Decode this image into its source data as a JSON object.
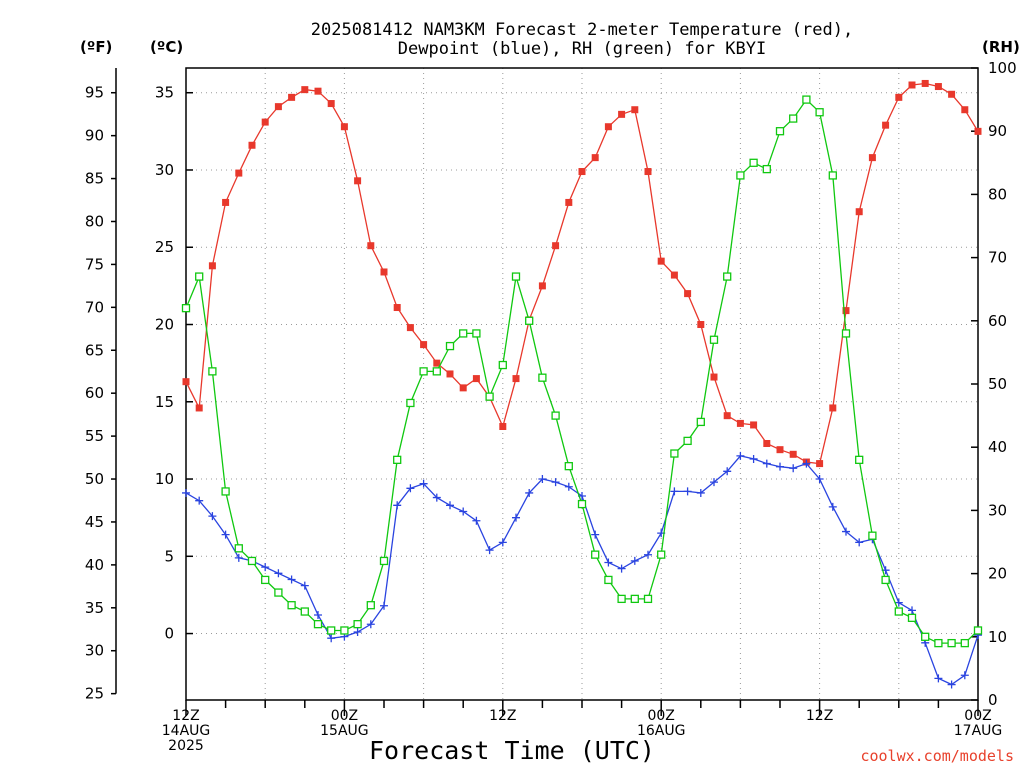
{
  "chart_data": {
    "type": "line",
    "title": [
      "2025081412 NAM3KM Forecast 2-meter Temperature (red),",
      "Dewpoint (blue), RH (green) for KBYI"
    ],
    "xlabel": "Forecast Time (UTC)",
    "axis_units": {
      "fahrenheit": "(ºF)",
      "celsius": "(ºC)",
      "rh": "(RH)"
    },
    "x_hours": [
      0,
      1,
      2,
      3,
      4,
      5,
      6,
      7,
      8,
      9,
      10,
      11,
      12,
      13,
      14,
      15,
      16,
      17,
      18,
      19,
      20,
      21,
      22,
      23,
      24,
      25,
      26,
      27,
      28,
      29,
      30,
      31,
      32,
      33,
      34,
      35,
      36,
      37,
      38,
      39,
      40,
      41,
      42,
      43,
      44,
      45,
      46,
      47,
      48,
      49,
      50,
      51,
      52,
      53,
      54,
      55,
      56,
      57,
      58,
      59,
      60
    ],
    "xlim": [
      0,
      60
    ],
    "x_ticks": [
      {
        "hour": 0,
        "lines": [
          "12Z",
          "14AUG",
          "2025"
        ]
      },
      {
        "hour": 12,
        "lines": [
          "00Z",
          "15AUG"
        ]
      },
      {
        "hour": 24,
        "lines": [
          "12Z"
        ]
      },
      {
        "hour": 36,
        "lines": [
          "00Z",
          "16AUG"
        ]
      },
      {
        "hour": 48,
        "lines": [
          "12Z"
        ]
      },
      {
        "hour": 60,
        "lines": [
          "00Z",
          "17AUG"
        ]
      }
    ],
    "celsius_axis": {
      "ylim": [
        -4.3,
        36.6
      ],
      "ticks": [
        0,
        5,
        10,
        15,
        20,
        25,
        30,
        35
      ]
    },
    "fahrenheit_axis": {
      "ticks": [
        25,
        30,
        35,
        40,
        45,
        50,
        55,
        60,
        65,
        70,
        75,
        80,
        85,
        90,
        95
      ]
    },
    "rh_axis": {
      "ylim": [
        0,
        100
      ],
      "ticks": [
        0,
        10,
        20,
        30,
        40,
        50,
        60,
        70,
        80,
        90,
        100
      ]
    },
    "colors": {
      "temperature": "#e8382c",
      "dewpoint": "#2a44e0",
      "rh": "#10c810",
      "grid": "#9a9a9a",
      "credit": "#e8412c"
    },
    "series": [
      {
        "key": "temperature",
        "axis": "celsius",
        "marker": "filled-square",
        "values": [
          16.3,
          14.6,
          23.8,
          27.9,
          29.8,
          31.6,
          33.1,
          34.1,
          34.7,
          35.2,
          35.1,
          34.3,
          32.8,
          29.3,
          25.1,
          23.4,
          21.1,
          19.8,
          18.7,
          17.5,
          16.8,
          15.9,
          16.5,
          15.3,
          13.4,
          16.5,
          20.3,
          22.5,
          25.1,
          27.9,
          29.9,
          30.8,
          32.8,
          33.6,
          33.9,
          29.9,
          24.1,
          23.2,
          22.0,
          20.0,
          16.6,
          14.1,
          13.6,
          13.5,
          12.3,
          11.9,
          11.6,
          11.1,
          11.0,
          14.6,
          20.9,
          27.3,
          30.8,
          32.9,
          34.7,
          35.5,
          35.6,
          35.4,
          34.9,
          33.9,
          32.5
        ]
      },
      {
        "key": "dewpoint",
        "axis": "celsius",
        "marker": "plus",
        "values": [
          9.1,
          8.6,
          7.6,
          6.4,
          4.9,
          4.7,
          4.3,
          3.9,
          3.5,
          3.1,
          1.2,
          -0.3,
          -0.2,
          0.1,
          0.6,
          1.8,
          8.3,
          9.4,
          9.7,
          8.8,
          8.3,
          7.9,
          7.3,
          5.4,
          5.9,
          7.5,
          9.1,
          10.0,
          9.8,
          9.5,
          8.9,
          6.4,
          4.6,
          4.2,
          4.7,
          5.1,
          6.5,
          9.2,
          9.2,
          9.1,
          9.8,
          10.5,
          11.5,
          11.3,
          11.0,
          10.8,
          10.7,
          11.0,
          10.0,
          8.2,
          6.6,
          5.9,
          6.1,
          4.1,
          2.0,
          1.5,
          -0.6,
          -2.9,
          -3.3,
          -2.7,
          -0.1
        ]
      },
      {
        "key": "rh",
        "axis": "rh",
        "marker": "open-square",
        "values": [
          62,
          67,
          52,
          33,
          24,
          22,
          19,
          17,
          15,
          14,
          12,
          11,
          11,
          12,
          15,
          22,
          38,
          47,
          52,
          52,
          56,
          58,
          58,
          48,
          53,
          67,
          60,
          51,
          45,
          37,
          31,
          23,
          19,
          16,
          16,
          16,
          23,
          39,
          41,
          44,
          57,
          67,
          83,
          85,
          84,
          90,
          92,
          95,
          93,
          83,
          58,
          38,
          26,
          19,
          14,
          13,
          10,
          9,
          9,
          9,
          11
        ]
      }
    ],
    "grid": true
  },
  "credit": "coolwx.com/models"
}
